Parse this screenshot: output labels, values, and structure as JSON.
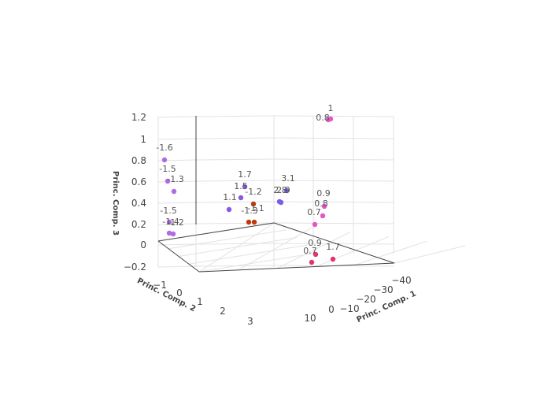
{
  "chart_data": {
    "type": "scatter3d",
    "x_axis": {
      "title": "Princ. Comp. 1",
      "ticks": [
        "−40",
        "−30",
        "−20",
        "−10",
        "0",
        "10"
      ]
    },
    "y_axis": {
      "title": "Princ. Comp. 2",
      "ticks": [
        "−1",
        "0",
        "1",
        "2",
        "3"
      ]
    },
    "z_axis": {
      "title": "Princ. Comp. 3",
      "ticks": [
        "−0.2",
        "0",
        "0.2",
        "0.4",
        "0.6",
        "0.8",
        "1",
        "1.2"
      ]
    },
    "grid": true,
    "points": [
      {
        "label": "1",
        "color": "#e754c6"
      },
      {
        "label": "0.8",
        "color": "#e754c6"
      },
      {
        "label": "0.9",
        "color": "#e754c6"
      },
      {
        "label": "0.8",
        "color": "#e754c6"
      },
      {
        "label": "0.7",
        "color": "#e754c6"
      },
      {
        "label": "0.9",
        "color": "#e0356f"
      },
      {
        "label": "0.7",
        "color": "#e0356f"
      },
      {
        "label": "1.7",
        "color": "#e0356f"
      },
      {
        "label": "3.1",
        "color": "#7c5bea"
      },
      {
        "label": "2.8",
        "color": "#7c5bea"
      },
      {
        "label": "2.9",
        "color": "#7c5bea"
      },
      {
        "label": "1.7",
        "color": "#8a56e8"
      },
      {
        "label": "1.5",
        "color": "#8a56e8"
      },
      {
        "label": "1.1",
        "color": "#8a56e8"
      },
      {
        "label": "-1.2",
        "color": "#c0390b"
      },
      {
        "label": "-1.3",
        "color": "#c0390b"
      },
      {
        "label": "-1.1",
        "color": "#c0390b"
      },
      {
        "label": "-1.6",
        "color": "#b169e6"
      },
      {
        "label": "-1.5",
        "color": "#b169e6"
      },
      {
        "label": "-1.3",
        "color": "#b169e6"
      },
      {
        "label": "-1.5",
        "color": "#b169e6"
      },
      {
        "label": "-1.4",
        "color": "#b169e6"
      },
      {
        "label": "-1.2",
        "color": "#b169e6"
      }
    ]
  }
}
